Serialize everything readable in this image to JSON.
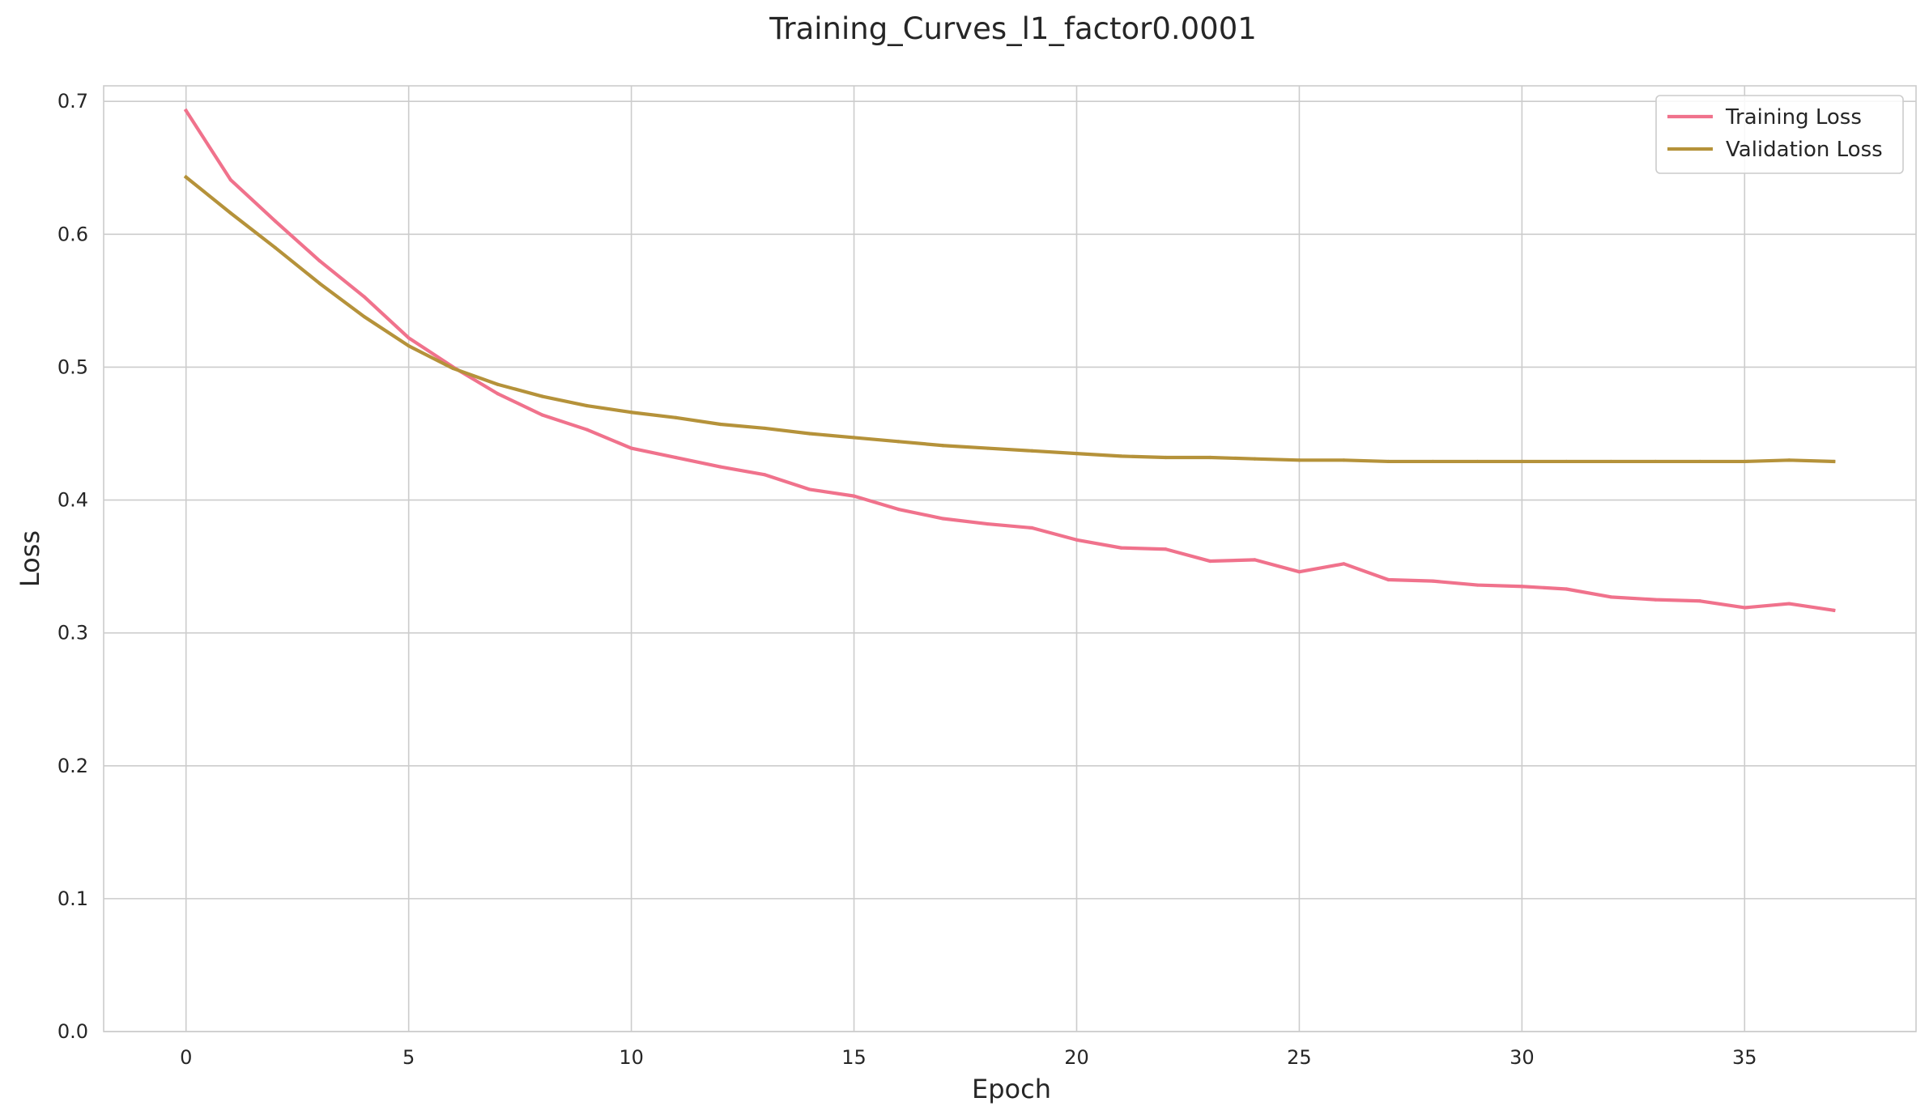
{
  "chart_data": {
    "type": "line",
    "title": "Training_Curves_l1_factor0.0001",
    "xlabel": "Epoch",
    "ylabel": "Loss",
    "xlim": [
      -1.85,
      38.85
    ],
    "ylim": [
      0.0,
      0.7117
    ],
    "xticks": [
      "0",
      "5",
      "10",
      "15",
      "20",
      "25",
      "30",
      "35"
    ],
    "yticks": [
      "0.0",
      "0.1",
      "0.2",
      "0.3",
      "0.4",
      "0.5",
      "0.6",
      "0.7"
    ],
    "grid": true,
    "legend_position": "top-right",
    "x": [
      0,
      1,
      2,
      3,
      4,
      5,
      6,
      7,
      8,
      9,
      10,
      11,
      12,
      13,
      14,
      15,
      16,
      17,
      18,
      19,
      20,
      21,
      22,
      23,
      24,
      25,
      26,
      27,
      28,
      29,
      30,
      31,
      32,
      33,
      34,
      35,
      36,
      37
    ],
    "series": [
      {
        "name": "Training Loss",
        "color": "#f0728c",
        "values": [
          0.693,
          0.641,
          0.61,
          0.58,
          0.553,
          0.522,
          0.5,
          0.48,
          0.464,
          0.453,
          0.439,
          0.432,
          0.425,
          0.419,
          0.408,
          0.403,
          0.393,
          0.386,
          0.382,
          0.379,
          0.37,
          0.364,
          0.363,
          0.354,
          0.355,
          0.346,
          0.352,
          0.34,
          0.339,
          0.336,
          0.335,
          0.333,
          0.327,
          0.325,
          0.324,
          0.319,
          0.322,
          0.317
        ]
      },
      {
        "name": "Validation Loss",
        "color": "#b5923a",
        "values": [
          0.643,
          0.616,
          0.59,
          0.563,
          0.538,
          0.516,
          0.499,
          0.487,
          0.478,
          0.471,
          0.466,
          0.462,
          0.457,
          0.454,
          0.45,
          0.447,
          0.444,
          0.441,
          0.439,
          0.437,
          0.435,
          0.433,
          0.432,
          0.432,
          0.431,
          0.43,
          0.43,
          0.429,
          0.429,
          0.429,
          0.429,
          0.429,
          0.429,
          0.429,
          0.429,
          0.429,
          0.43,
          0.429
        ]
      }
    ]
  }
}
